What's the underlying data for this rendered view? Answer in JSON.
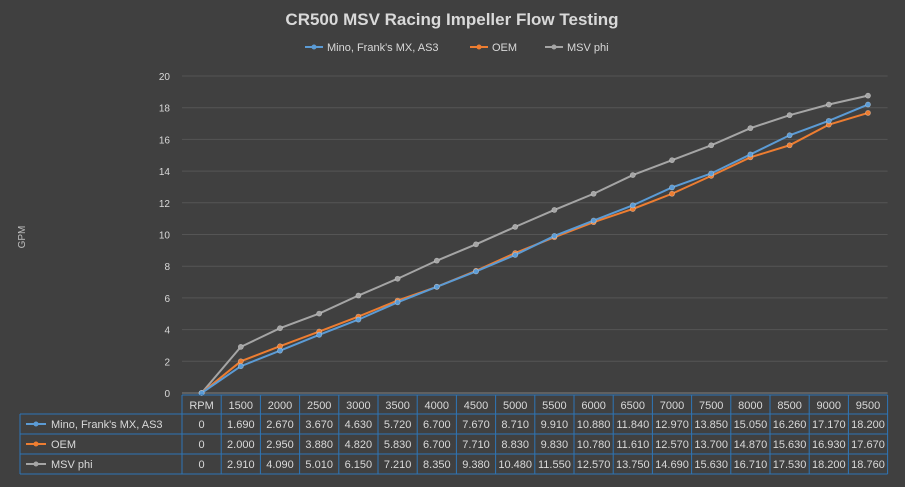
{
  "chart_data": {
    "type": "line",
    "title": "CR500 MSV Racing Impeller Flow Testing",
    "xlabel": "",
    "ylabel": "GPM",
    "ylim": [
      0,
      20
    ],
    "yticks": [
      0,
      2,
      4,
      6,
      8,
      10,
      12,
      14,
      16,
      18,
      20
    ],
    "grid": true,
    "legend": "top",
    "data_table": true,
    "table_header_label": "RPM",
    "categories": [
      "0",
      "1500",
      "2000",
      "2500",
      "3000",
      "3500",
      "4000",
      "4500",
      "5000",
      "5500",
      "6000",
      "6500",
      "7000",
      "7500",
      "8000",
      "8500",
      "9000",
      "9500"
    ],
    "category_labels": [
      "RPM",
      "1500",
      "2000",
      "2500",
      "3000",
      "3500",
      "4000",
      "4500",
      "5000",
      "5500",
      "6000",
      "6500",
      "7000",
      "7500",
      "8000",
      "8500",
      "9000",
      "9500"
    ],
    "series": [
      {
        "name": "Mino, Frank's MX, AS3",
        "color": "#5b9bd5",
        "values": [
          0,
          1.69,
          2.67,
          3.67,
          4.63,
          5.72,
          6.7,
          7.67,
          8.71,
          9.91,
          10.88,
          11.84,
          12.97,
          13.85,
          15.05,
          16.26,
          17.17,
          18.2
        ],
        "labels": [
          "0",
          "1.690",
          "2.670",
          "3.670",
          "4.630",
          "5.720",
          "6.700",
          "7.670",
          "8.710",
          "9.910",
          "10.880",
          "11.840",
          "12.970",
          "13.850",
          "15.050",
          "16.260",
          "17.170",
          "18.200"
        ]
      },
      {
        "name": "OEM",
        "color": "#ed7d31",
        "values": [
          0,
          2.0,
          2.95,
          3.88,
          4.82,
          5.83,
          6.7,
          7.71,
          8.83,
          9.83,
          10.78,
          11.61,
          12.57,
          13.7,
          14.87,
          15.63,
          16.93,
          17.67
        ],
        "labels": [
          "0",
          "2.000",
          "2.950",
          "3.880",
          "4.820",
          "5.830",
          "6.700",
          "7.710",
          "8.830",
          "9.830",
          "10.780",
          "11.610",
          "12.570",
          "13.700",
          "14.870",
          "15.630",
          "16.930",
          "17.670"
        ]
      },
      {
        "name": "MSV phi",
        "color": "#a5a5a5",
        "values": [
          0,
          2.91,
          4.09,
          5.01,
          6.15,
          7.21,
          8.35,
          9.38,
          10.48,
          11.55,
          12.57,
          13.75,
          14.69,
          15.63,
          16.71,
          17.53,
          18.2,
          18.76
        ],
        "labels": [
          "0",
          "2.910",
          "4.090",
          "5.010",
          "6.150",
          "7.210",
          "8.350",
          "9.380",
          "10.480",
          "11.550",
          "12.570",
          "13.750",
          "14.690",
          "15.630",
          "16.710",
          "17.530",
          "18.200",
          "18.760"
        ]
      }
    ],
    "colors": {
      "background": "#404040",
      "text": "#d9d9d9",
      "grid": "#555555",
      "table_border": "#2e75b6"
    }
  }
}
